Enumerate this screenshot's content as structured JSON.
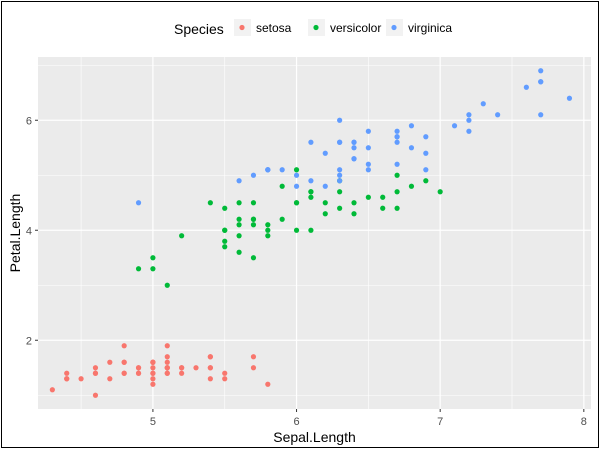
{
  "chart_data": {
    "type": "scatter",
    "title": "",
    "xlabel": "Sepal.Length",
    "ylabel": "Petal.Length",
    "xlim": [
      4.2,
      8.05
    ],
    "ylim": [
      0.75,
      7.15
    ],
    "x_ticks": [
      5,
      6,
      7,
      8
    ],
    "y_ticks": [
      2,
      4,
      6
    ],
    "grid": true,
    "legend": {
      "title": "Species",
      "placement": "top"
    },
    "background_color": "#EBEBEB",
    "grid_color": "#FFFFFF",
    "series": [
      {
        "name": "setosa",
        "color": "#F8766D",
        "points": [
          [
            5.1,
            1.4
          ],
          [
            4.9,
            1.4
          ],
          [
            4.7,
            1.3
          ],
          [
            4.6,
            1.5
          ],
          [
            5.0,
            1.4
          ],
          [
            5.4,
            1.7
          ],
          [
            4.6,
            1.4
          ],
          [
            5.0,
            1.5
          ],
          [
            4.4,
            1.4
          ],
          [
            4.9,
            1.5
          ],
          [
            5.4,
            1.5
          ],
          [
            4.8,
            1.6
          ],
          [
            4.8,
            1.4
          ],
          [
            4.3,
            1.1
          ],
          [
            5.8,
            1.2
          ],
          [
            5.7,
            1.5
          ],
          [
            5.4,
            1.3
          ],
          [
            5.1,
            1.4
          ],
          [
            5.7,
            1.7
          ],
          [
            5.1,
            1.5
          ],
          [
            5.4,
            1.7
          ],
          [
            5.1,
            1.5
          ],
          [
            4.6,
            1.0
          ],
          [
            5.1,
            1.7
          ],
          [
            4.8,
            1.9
          ],
          [
            5.0,
            1.6
          ],
          [
            5.0,
            1.6
          ],
          [
            5.2,
            1.5
          ],
          [
            5.2,
            1.4
          ],
          [
            4.7,
            1.6
          ],
          [
            4.8,
            1.6
          ],
          [
            5.4,
            1.5
          ],
          [
            5.2,
            1.5
          ],
          [
            5.5,
            1.4
          ],
          [
            4.9,
            1.5
          ],
          [
            5.0,
            1.2
          ],
          [
            5.5,
            1.3
          ],
          [
            4.9,
            1.4
          ],
          [
            4.4,
            1.3
          ],
          [
            5.1,
            1.5
          ],
          [
            5.0,
            1.3
          ],
          [
            4.5,
            1.3
          ],
          [
            4.4,
            1.3
          ],
          [
            5.0,
            1.6
          ],
          [
            5.1,
            1.9
          ],
          [
            4.8,
            1.4
          ],
          [
            5.1,
            1.6
          ],
          [
            4.6,
            1.4
          ],
          [
            5.3,
            1.5
          ],
          [
            5.0,
            1.4
          ]
        ]
      },
      {
        "name": "versicolor",
        "color": "#00BA38",
        "points": [
          [
            7.0,
            4.7
          ],
          [
            6.4,
            4.5
          ],
          [
            6.9,
            4.9
          ],
          [
            5.5,
            4.0
          ],
          [
            6.5,
            4.6
          ],
          [
            5.7,
            4.5
          ],
          [
            6.3,
            4.7
          ],
          [
            4.9,
            3.3
          ],
          [
            6.6,
            4.6
          ],
          [
            5.2,
            3.9
          ],
          [
            5.0,
            3.5
          ],
          [
            5.9,
            4.2
          ],
          [
            6.0,
            4.0
          ],
          [
            6.1,
            4.7
          ],
          [
            5.6,
            3.6
          ],
          [
            6.7,
            4.4
          ],
          [
            5.6,
            4.5
          ],
          [
            5.8,
            4.1
          ],
          [
            6.2,
            4.5
          ],
          [
            5.6,
            3.9
          ],
          [
            5.9,
            4.8
          ],
          [
            6.1,
            4.0
          ],
          [
            6.3,
            4.9
          ],
          [
            6.1,
            4.7
          ],
          [
            6.4,
            4.3
          ],
          [
            6.6,
            4.4
          ],
          [
            6.8,
            4.8
          ],
          [
            6.7,
            5.0
          ],
          [
            6.0,
            4.5
          ],
          [
            5.7,
            3.5
          ],
          [
            5.5,
            3.8
          ],
          [
            5.5,
            3.7
          ],
          [
            5.8,
            3.9
          ],
          [
            6.0,
            5.1
          ],
          [
            5.4,
            4.5
          ],
          [
            6.0,
            4.5
          ],
          [
            6.7,
            4.7
          ],
          [
            6.3,
            4.4
          ],
          [
            5.6,
            4.1
          ],
          [
            5.5,
            4.0
          ],
          [
            5.5,
            4.4
          ],
          [
            6.1,
            4.6
          ],
          [
            5.8,
            4.0
          ],
          [
            5.0,
            3.3
          ],
          [
            5.6,
            4.2
          ],
          [
            5.7,
            4.2
          ],
          [
            5.7,
            4.2
          ],
          [
            6.2,
            4.3
          ],
          [
            5.1,
            3.0
          ],
          [
            5.7,
            4.1
          ]
        ]
      },
      {
        "name": "virginica",
        "color": "#619CFF",
        "points": [
          [
            6.3,
            6.0
          ],
          [
            5.8,
            5.1
          ],
          [
            7.1,
            5.9
          ],
          [
            6.3,
            5.6
          ],
          [
            6.5,
            5.8
          ],
          [
            7.6,
            6.6
          ],
          [
            4.9,
            4.5
          ],
          [
            7.3,
            6.3
          ],
          [
            6.7,
            5.8
          ],
          [
            7.2,
            6.1
          ],
          [
            6.5,
            5.1
          ],
          [
            6.4,
            5.3
          ],
          [
            6.8,
            5.5
          ],
          [
            5.7,
            5.0
          ],
          [
            5.8,
            5.1
          ],
          [
            6.4,
            5.3
          ],
          [
            6.5,
            5.5
          ],
          [
            7.7,
            6.7
          ],
          [
            7.7,
            6.9
          ],
          [
            6.0,
            5.0
          ],
          [
            6.9,
            5.7
          ],
          [
            5.6,
            4.9
          ],
          [
            7.7,
            6.7
          ],
          [
            6.3,
            4.9
          ],
          [
            6.7,
            5.7
          ],
          [
            7.2,
            6.0
          ],
          [
            6.2,
            4.8
          ],
          [
            6.1,
            4.9
          ],
          [
            6.4,
            5.6
          ],
          [
            7.2,
            5.8
          ],
          [
            7.4,
            6.1
          ],
          [
            7.9,
            6.4
          ],
          [
            6.4,
            5.6
          ],
          [
            6.3,
            5.1
          ],
          [
            6.1,
            5.6
          ],
          [
            7.7,
            6.1
          ],
          [
            6.3,
            5.6
          ],
          [
            6.4,
            5.5
          ],
          [
            6.0,
            4.8
          ],
          [
            6.9,
            5.4
          ],
          [
            6.7,
            5.6
          ],
          [
            6.9,
            5.1
          ],
          [
            5.8,
            5.1
          ],
          [
            6.8,
            5.9
          ],
          [
            6.7,
            5.7
          ],
          [
            6.7,
            5.2
          ],
          [
            6.3,
            5.0
          ],
          [
            6.5,
            5.2
          ],
          [
            6.2,
            5.4
          ],
          [
            5.9,
            5.1
          ]
        ]
      }
    ]
  }
}
